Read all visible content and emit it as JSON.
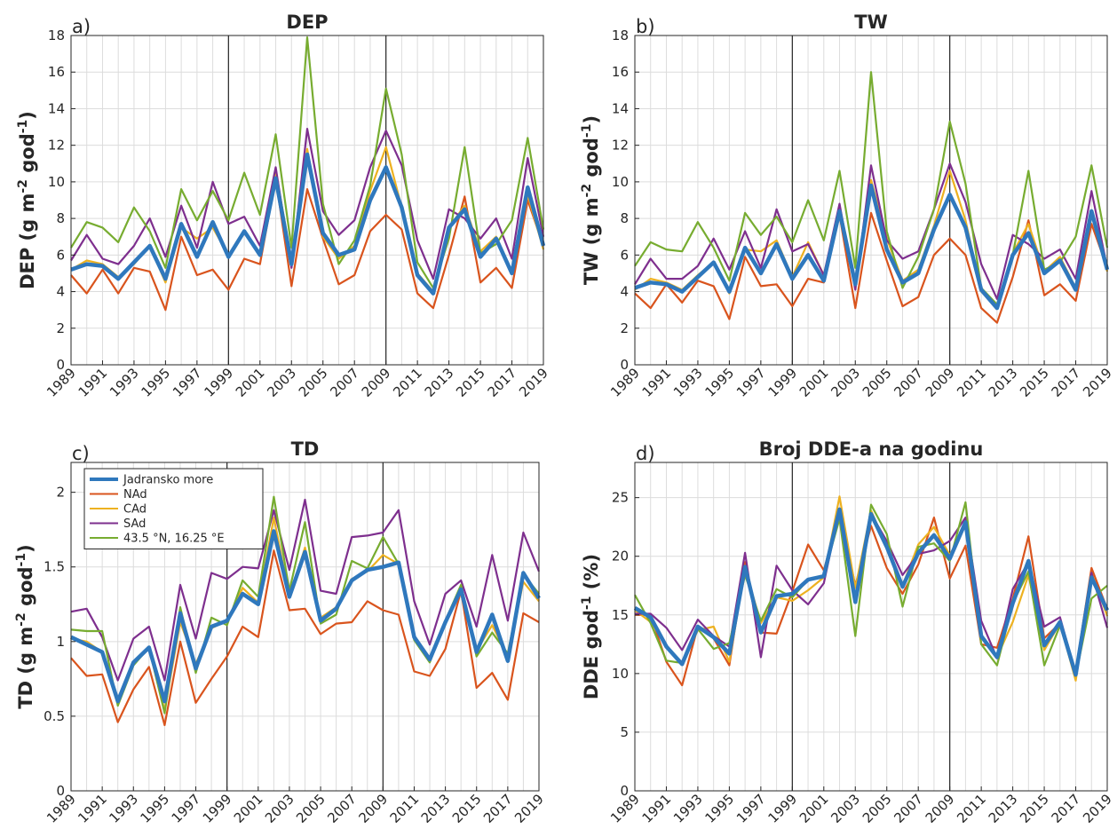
{
  "chart_data": [
    {
      "type": "line",
      "panel": "a)",
      "title": "DEP",
      "ylabel": "DEP (g m-2 god-1)",
      "ylabel_parts": {
        "pre": "DEP (g m",
        "sup1": "-2",
        "mid": " god",
        "sup2": "-1",
        "post": ")"
      },
      "xlabel": "",
      "x": [
        1989,
        1990,
        1991,
        1992,
        1993,
        1994,
        1995,
        1996,
        1997,
        1998,
        1999,
        2000,
        2001,
        2002,
        2003,
        2004,
        2005,
        2006,
        2007,
        2008,
        2009,
        2010,
        2011,
        2012,
        2013,
        2014,
        2015,
        2016,
        2017,
        2018,
        2019
      ],
      "xlim": [
        1989,
        2019
      ],
      "ylim": [
        0,
        18
      ],
      "yticks": [
        0,
        2,
        4,
        6,
        8,
        10,
        12,
        14,
        16,
        18
      ],
      "xticks": [
        1989,
        1991,
        1993,
        1995,
        1997,
        1999,
        2001,
        2003,
        2005,
        2007,
        2009,
        2011,
        2013,
        2015,
        2017,
        2019
      ],
      "vlines": [
        1999,
        2009
      ],
      "grid": true,
      "series": [
        {
          "name": "NAd",
          "values": [
            4.9,
            3.9,
            5.2,
            3.9,
            5.3,
            5.1,
            3.0,
            7.0,
            4.9,
            5.2,
            4.1,
            5.8,
            5.5,
            10.2,
            4.3,
            9.6,
            6.9,
            4.4,
            4.9,
            7.3,
            8.2,
            7.4,
            3.9,
            3.1,
            6.0,
            9.2,
            4.5,
            5.3,
            4.2,
            9.0,
            6.5
          ]
        },
        {
          "name": "CAd",
          "values": [
            5.2,
            5.7,
            5.5,
            4.8,
            5.5,
            6.5,
            4.5,
            7.5,
            6.9,
            7.5,
            6.0,
            7.2,
            6.1,
            10.6,
            5.7,
            11.8,
            7.0,
            5.8,
            6.5,
            9.5,
            11.9,
            8.6,
            5.0,
            4.0,
            7.5,
            8.7,
            6.2,
            7.0,
            5.1,
            9.3,
            6.3
          ]
        },
        {
          "name": "SAd",
          "values": [
            5.7,
            7.1,
            5.8,
            5.5,
            6.5,
            8.0,
            5.9,
            8.7,
            6.4,
            10.0,
            7.7,
            8.1,
            6.5,
            10.8,
            5.3,
            12.9,
            8.4,
            7.1,
            7.9,
            10.8,
            12.8,
            10.9,
            6.8,
            4.7,
            8.5,
            8.0,
            6.9,
            8.0,
            5.8,
            11.3,
            7.0
          ]
        },
        {
          "name": "43.5 °N, 16.25 °E",
          "values": [
            6.4,
            7.8,
            7.5,
            6.7,
            8.6,
            7.3,
            5.3,
            9.6,
            7.9,
            9.5,
            7.9,
            10.5,
            8.2,
            12.6,
            6.4,
            17.9,
            8.8,
            5.5,
            6.8,
            9.8,
            15.1,
            11.5,
            5.6,
            4.2,
            6.9,
            11.9,
            6.1,
            6.6,
            7.9,
            12.4,
            7.4
          ]
        },
        {
          "name": "Jadransko more",
          "values": [
            5.2,
            5.5,
            5.4,
            4.7,
            5.6,
            6.5,
            4.7,
            7.7,
            5.9,
            7.8,
            5.9,
            7.3,
            6.0,
            10.2,
            5.5,
            11.5,
            7.2,
            6.0,
            6.3,
            9.0,
            10.8,
            8.6,
            4.9,
            3.9,
            7.5,
            8.5,
            5.9,
            6.9,
            5.0,
            9.7,
            6.5
          ]
        }
      ]
    },
    {
      "type": "line",
      "panel": "b)",
      "title": "TW",
      "ylabel": "TW (g m-2 god-1)",
      "ylabel_parts": {
        "pre": "TW (g m",
        "sup1": "-2",
        "mid": " god",
        "sup2": "-1",
        "post": ")"
      },
      "xlabel": "",
      "x": [
        1989,
        1990,
        1991,
        1992,
        1993,
        1994,
        1995,
        1996,
        1997,
        1998,
        1999,
        2000,
        2001,
        2002,
        2003,
        2004,
        2005,
        2006,
        2007,
        2008,
        2009,
        2010,
        2011,
        2012,
        2013,
        2014,
        2015,
        2016,
        2017,
        2018,
        2019
      ],
      "xlim": [
        1989,
        2019
      ],
      "ylim": [
        0,
        18
      ],
      "yticks": [
        0,
        2,
        4,
        6,
        8,
        10,
        12,
        14,
        16,
        18
      ],
      "xticks": [
        1989,
        1991,
        1993,
        1995,
        1997,
        1999,
        2001,
        2003,
        2005,
        2007,
        2009,
        2011,
        2013,
        2015,
        2017,
        2019
      ],
      "vlines": [
        1999,
        2009
      ],
      "grid": true,
      "series": [
        {
          "name": "NAd",
          "values": [
            3.9,
            3.1,
            4.4,
            3.4,
            4.6,
            4.3,
            2.5,
            5.9,
            4.3,
            4.4,
            3.2,
            4.7,
            4.5,
            8.2,
            3.1,
            8.3,
            5.7,
            3.2,
            3.7,
            6.0,
            6.9,
            6.0,
            3.1,
            2.3,
            4.8,
            7.9,
            3.8,
            4.4,
            3.5,
            7.7,
            5.3
          ]
        },
        {
          "name": "CAd",
          "values": [
            4.1,
            4.7,
            4.5,
            4.1,
            4.9,
            5.6,
            3.9,
            6.3,
            6.2,
            6.8,
            4.8,
            6.7,
            4.9,
            8.3,
            4.4,
            10.1,
            6.9,
            4.6,
            5.2,
            7.6,
            10.6,
            7.9,
            4.0,
            3.2,
            6.1,
            7.7,
            5.1,
            5.9,
            4.2,
            8.3,
            5.1
          ]
        },
        {
          "name": "SAd",
          "values": [
            4.4,
            5.8,
            4.7,
            4.7,
            5.4,
            6.9,
            5.2,
            7.3,
            5.3,
            8.5,
            6.2,
            6.6,
            4.9,
            8.8,
            4.1,
            10.9,
            6.8,
            5.8,
            6.2,
            8.5,
            11.0,
            8.9,
            5.5,
            3.6,
            7.1,
            6.6,
            5.8,
            6.3,
            4.7,
            9.5,
            5.3
          ]
        },
        {
          "name": "43.5 °N, 16.25 °E",
          "values": [
            5.4,
            6.7,
            6.3,
            6.2,
            7.8,
            6.4,
            4.6,
            8.3,
            7.1,
            8.1,
            6.7,
            9.0,
            6.8,
            10.6,
            5.3,
            16.0,
            7.3,
            4.2,
            5.9,
            8.5,
            13.3,
            9.9,
            4.2,
            3.3,
            6.0,
            10.6,
            5.2,
            5.6,
            7.0,
            10.9,
            6.4
          ]
        },
        {
          "name": "Jadransko more",
          "values": [
            4.2,
            4.5,
            4.4,
            4.0,
            4.8,
            5.6,
            4.0,
            6.4,
            5.0,
            6.6,
            4.7,
            6.0,
            4.6,
            8.4,
            4.4,
            9.8,
            6.3,
            4.5,
            5.0,
            7.4,
            9.3,
            7.5,
            4.1,
            3.1,
            6.0,
            7.2,
            5.0,
            5.7,
            4.1,
            8.4,
            5.2
          ]
        }
      ]
    },
    {
      "type": "line",
      "panel": "c)",
      "title": "TD",
      "ylabel": "TD (g m-2 god-1)",
      "ylabel_parts": {
        "pre": "TD (g m",
        "sup1": "-2",
        "mid": " god",
        "sup2": "-1",
        "post": ")"
      },
      "xlabel": "",
      "x": [
        1989,
        1990,
        1991,
        1992,
        1993,
        1994,
        1995,
        1996,
        1997,
        1998,
        1999,
        2000,
        2001,
        2002,
        2003,
        2004,
        2005,
        2006,
        2007,
        2008,
        2009,
        2010,
        2011,
        2012,
        2013,
        2014,
        2015,
        2016,
        2017,
        2018,
        2019
      ],
      "xlim": [
        1989,
        2019
      ],
      "ylim": [
        0,
        2.2
      ],
      "yticks": [
        0,
        0.5,
        1,
        1.5,
        2
      ],
      "ytick_labels": [
        "0",
        "0.5",
        "1",
        "1.5",
        "2"
      ],
      "xticks": [
        1989,
        1991,
        1993,
        1995,
        1997,
        1999,
        2001,
        2003,
        2005,
        2007,
        2009,
        2011,
        2013,
        2015,
        2017,
        2019
      ],
      "vlines": [
        1999,
        2009
      ],
      "grid": true,
      "legend": {
        "placement": "top-left",
        "entries": [
          "Jadransko more",
          "NAd",
          "CAd",
          "SAd",
          "43.5 °N, 16.25 °E"
        ]
      },
      "series": [
        {
          "name": "NAd",
          "values": [
            0.89,
            0.77,
            0.78,
            0.46,
            0.68,
            0.83,
            0.44,
            1.0,
            0.59,
            0.75,
            0.9,
            1.1,
            1.03,
            1.61,
            1.21,
            1.22,
            1.05,
            1.12,
            1.13,
            1.27,
            1.21,
            1.18,
            0.8,
            0.77,
            0.95,
            1.34,
            0.69,
            0.79,
            0.61,
            1.19,
            1.13
          ]
        },
        {
          "name": "CAd",
          "values": [
            1.02,
            1.0,
            0.93,
            0.58,
            0.86,
            0.95,
            0.54,
            1.13,
            0.85,
            1.09,
            1.14,
            1.36,
            1.26,
            1.83,
            1.3,
            1.63,
            1.16,
            1.23,
            1.42,
            1.47,
            1.58,
            1.52,
            1.04,
            0.89,
            1.12,
            1.37,
            0.94,
            1.11,
            0.9,
            1.4,
            1.27
          ]
        },
        {
          "name": "SAd",
          "values": [
            1.2,
            1.22,
            1.03,
            0.74,
            1.02,
            1.1,
            0.74,
            1.38,
            1.02,
            1.46,
            1.42,
            1.5,
            1.49,
            1.88,
            1.48,
            1.95,
            1.34,
            1.32,
            1.7,
            1.71,
            1.73,
            1.88,
            1.27,
            0.98,
            1.32,
            1.41,
            1.1,
            1.58,
            1.14,
            1.73,
            1.47
          ]
        },
        {
          "name": "43.5 °N, 16.25 °E",
          "values": [
            1.08,
            1.07,
            1.07,
            0.57,
            0.84,
            0.96,
            0.52,
            1.23,
            0.79,
            1.16,
            1.11,
            1.41,
            1.3,
            1.97,
            1.34,
            1.8,
            1.12,
            1.18,
            1.54,
            1.49,
            1.7,
            1.52,
            1.01,
            0.86,
            1.14,
            1.38,
            0.9,
            1.06,
            0.92,
            1.45,
            1.32
          ]
        },
        {
          "name": "Jadransko more",
          "values": [
            1.03,
            0.98,
            0.93,
            0.6,
            0.86,
            0.96,
            0.6,
            1.19,
            0.82,
            1.1,
            1.14,
            1.32,
            1.25,
            1.74,
            1.3,
            1.6,
            1.14,
            1.22,
            1.41,
            1.48,
            1.5,
            1.53,
            1.03,
            0.88,
            1.13,
            1.35,
            0.93,
            1.18,
            0.87,
            1.46,
            1.29
          ]
        }
      ]
    },
    {
      "type": "line",
      "panel": "d)",
      "title": "Broj DDE-a na godinu",
      "ylabel": "DDE god-1 (%)",
      "ylabel_parts": {
        "pre": "DDE god",
        "sup1": "-1",
        "mid": " (%)",
        "sup2": "",
        "post": ""
      },
      "xlabel": "",
      "x": [
        1989,
        1990,
        1991,
        1992,
        1993,
        1994,
        1995,
        1996,
        1997,
        1998,
        1999,
        2000,
        2001,
        2002,
        2003,
        2004,
        2005,
        2006,
        2007,
        2008,
        2009,
        2010,
        2011,
        2012,
        2013,
        2014,
        2015,
        2016,
        2017,
        2018,
        2019
      ],
      "xlim": [
        1989,
        2019
      ],
      "ylim": [
        0,
        28
      ],
      "yticks": [
        0,
        5,
        10,
        15,
        20,
        25
      ],
      "xticks": [
        1989,
        1991,
        1993,
        1995,
        1997,
        1999,
        2001,
        2003,
        2005,
        2007,
        2009,
        2011,
        2013,
        2015,
        2017,
        2019
      ],
      "vlines": [
        1999,
        2009
      ],
      "grid": true,
      "series": [
        {
          "name": "NAd",
          "values": [
            15.0,
            15.0,
            11.0,
            9.0,
            14.0,
            13.0,
            10.7,
            19.5,
            13.5,
            13.4,
            17.0,
            21.0,
            18.8,
            23.6,
            17.5,
            22.6,
            19.0,
            16.8,
            19.3,
            23.3,
            18.1,
            20.9,
            12.5,
            12.2,
            16.4,
            21.7,
            13.0,
            14.3,
            10.2,
            19.0,
            15.5
          ]
        },
        {
          "name": "CAd",
          "values": [
            15.4,
            14.4,
            12.4,
            10.8,
            13.7,
            14.0,
            11.0,
            19.0,
            14.3,
            16.5,
            16.2,
            17.1,
            18.2,
            25.1,
            17.3,
            23.9,
            20.8,
            17.5,
            21.0,
            22.5,
            20.1,
            22.7,
            13.3,
            11.4,
            14.4,
            18.4,
            12.0,
            14.3,
            9.4,
            18.6,
            14.9
          ]
        },
        {
          "name": "SAd",
          "values": [
            15.1,
            15.1,
            13.9,
            12.0,
            14.6,
            13.2,
            12.3,
            20.3,
            11.4,
            19.2,
            17.1,
            15.9,
            17.7,
            24.0,
            16.4,
            23.6,
            21.3,
            18.4,
            20.2,
            20.5,
            21.3,
            23.3,
            14.5,
            11.3,
            17.2,
            19.5,
            14.0,
            14.8,
            10.0,
            18.6,
            13.9
          ]
        },
        {
          "name": "43.5 °N, 16.25 °E",
          "values": [
            16.7,
            14.3,
            11.1,
            10.9,
            13.8,
            12.1,
            12.6,
            18.4,
            14.5,
            17.2,
            16.5,
            18.0,
            18.4,
            23.2,
            13.2,
            24.4,
            21.9,
            15.7,
            20.8,
            21.1,
            19.6,
            24.6,
            12.5,
            10.7,
            16.0,
            18.7,
            10.7,
            14.1,
            9.8,
            16.4,
            17.5
          ]
        },
        {
          "name": "Jadransko more",
          "values": [
            15.6,
            14.8,
            12.3,
            10.8,
            14.0,
            13.1,
            11.7,
            19.1,
            13.5,
            16.6,
            16.8,
            18.0,
            18.3,
            24.0,
            16.1,
            23.6,
            20.8,
            17.4,
            20.3,
            21.8,
            19.8,
            22.9,
            13.2,
            11.4,
            16.0,
            19.6,
            12.4,
            14.4,
            9.9,
            18.2,
            15.4
          ]
        }
      ]
    }
  ],
  "colors": {
    "Jadransko more": "#2f78bd",
    "NAd": "#d9541d",
    "CAd": "#edb120",
    "SAd": "#7e2f8e",
    "43.5 °N, 16.25 °E": "#77ac30"
  }
}
